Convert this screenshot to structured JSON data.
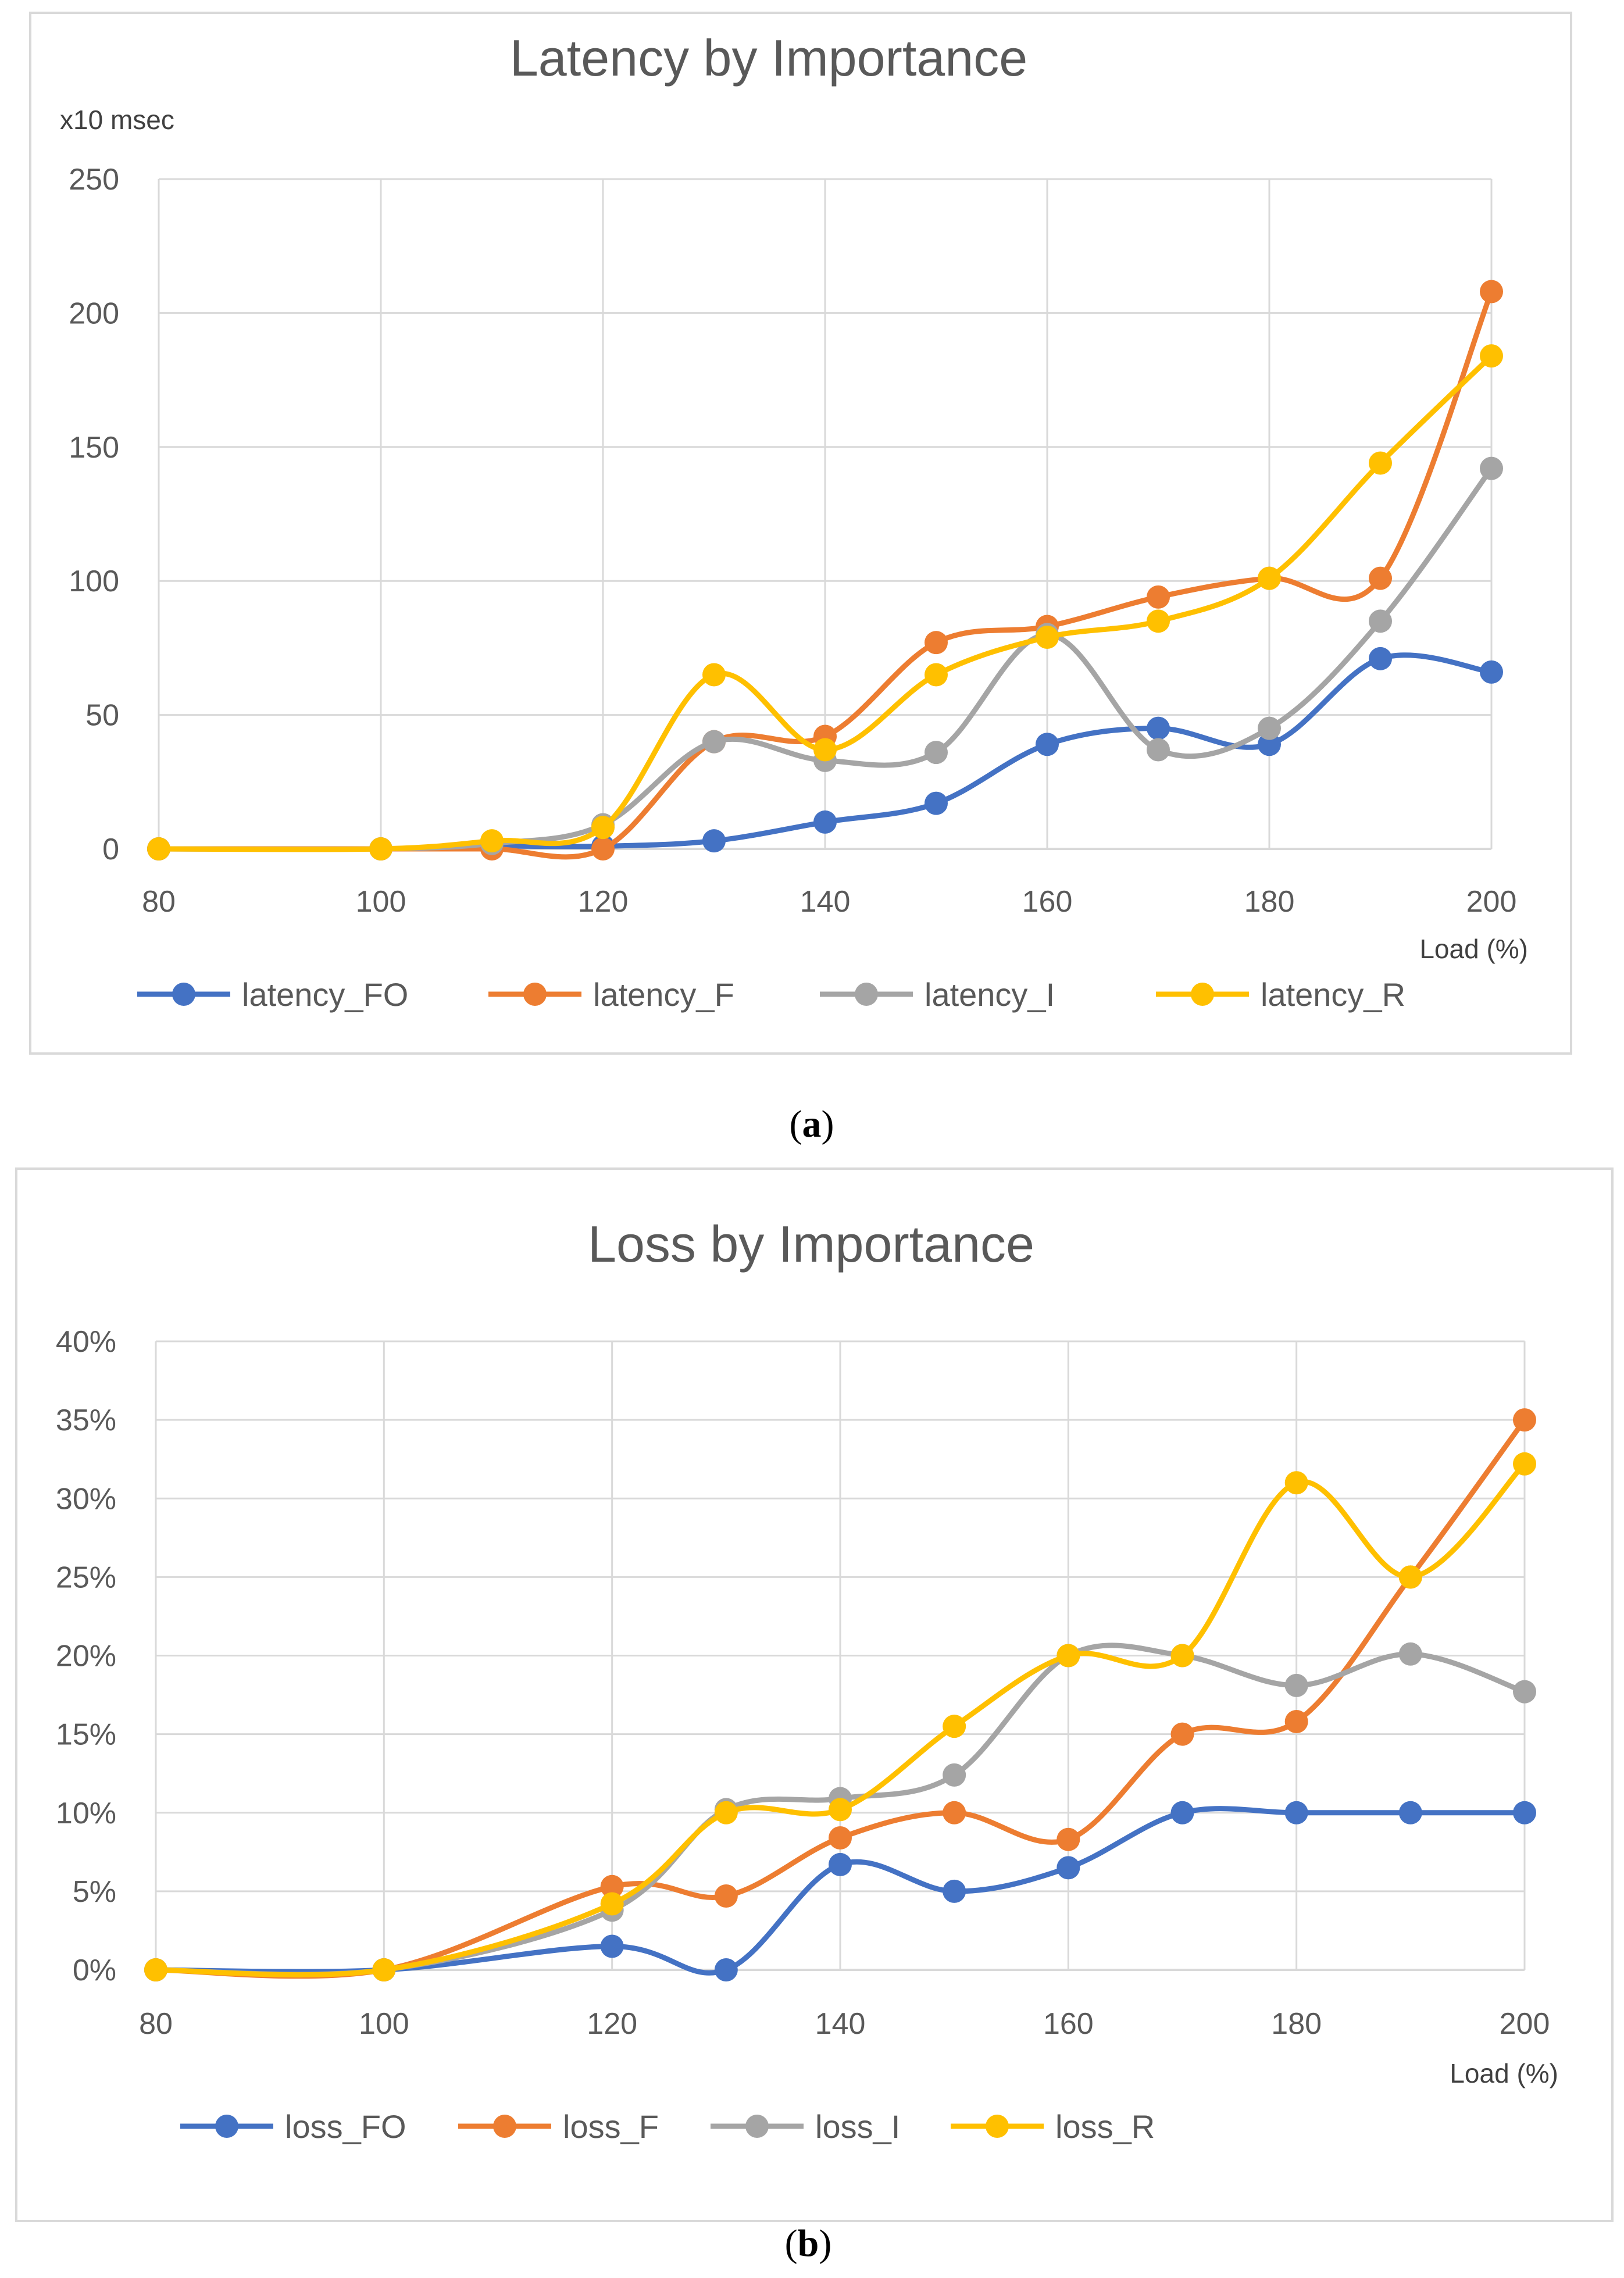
{
  "chart_data": [
    {
      "type": "line",
      "title": "Latency by Importance",
      "ylabel": "x10 msec",
      "xlabel": "Load (%)",
      "caption_letter": "a",
      "x": [
        80,
        100,
        110,
        120,
        130,
        140,
        150,
        160,
        170,
        180,
        190,
        200
      ],
      "xlim": [
        80,
        200
      ],
      "xticks": [
        "80",
        "100",
        "120",
        "140",
        "160",
        "180",
        "200"
      ],
      "xtick_values": [
        80,
        100,
        120,
        140,
        160,
        180,
        200
      ],
      "ylim": [
        0,
        250
      ],
      "yticks": [
        "0",
        "50",
        "100",
        "150",
        "200",
        "250"
      ],
      "ytick_values": [
        0,
        50,
        100,
        150,
        200,
        250
      ],
      "grid": true,
      "legend_position": "bottom",
      "series": [
        {
          "name": "latency_FO",
          "color": "#4472C4",
          "values": [
            0,
            0,
            1,
            1,
            3,
            10,
            17,
            39,
            45,
            39,
            71,
            66
          ]
        },
        {
          "name": "latency_F",
          "color": "#ED7D31",
          "values": [
            0,
            0,
            0,
            0,
            40,
            42,
            77,
            83,
            94,
            101,
            101,
            208
          ]
        },
        {
          "name": "latency_I",
          "color": "#A5A5A5",
          "values": [
            0,
            0,
            2,
            9,
            40,
            33,
            36,
            80,
            37,
            45,
            85,
            142
          ]
        },
        {
          "name": "latency_R",
          "color": "#FFC000",
          "values": [
            0,
            0,
            3,
            8,
            65,
            37,
            65,
            79,
            85,
            101,
            144,
            184
          ]
        }
      ]
    },
    {
      "type": "line",
      "title": "Loss by Importance",
      "ylabel": "",
      "xlabel": "Load (%)",
      "caption_letter": "b",
      "x": [
        80,
        100,
        120,
        130,
        140,
        150,
        160,
        170,
        180,
        190,
        200
      ],
      "xlim": [
        80,
        200
      ],
      "xticks": [
        "80",
        "100",
        "120",
        "140",
        "160",
        "180",
        "200"
      ],
      "xtick_values": [
        80,
        100,
        120,
        140,
        160,
        180,
        200
      ],
      "ylim": [
        0,
        40
      ],
      "yticks": [
        "0%",
        "5%",
        "10%",
        "15%",
        "20%",
        "25%",
        "30%",
        "35%",
        "40%"
      ],
      "ytick_values": [
        0,
        5,
        10,
        15,
        20,
        25,
        30,
        35,
        40
      ],
      "grid": true,
      "legend_position": "bottom",
      "series": [
        {
          "name": "loss_FO",
          "color": "#4472C4",
          "values": [
            0,
            0,
            1.5,
            0,
            6.7,
            5,
            6.5,
            10,
            10,
            10,
            10
          ]
        },
        {
          "name": "loss_F",
          "color": "#ED7D31",
          "values": [
            0,
            0,
            5.3,
            4.7,
            8.4,
            10,
            8.3,
            15,
            15.8,
            25,
            35
          ]
        },
        {
          "name": "loss_I",
          "color": "#A5A5A5",
          "values": [
            0,
            0,
            3.8,
            10.2,
            10.9,
            12.4,
            20,
            20,
            18.1,
            20.1,
            17.7
          ]
        },
        {
          "name": "loss_R",
          "color": "#FFC000",
          "values": [
            0,
            0,
            4.2,
            10,
            10.2,
            15.5,
            20,
            20,
            31,
            25,
            32.2
          ]
        }
      ]
    }
  ]
}
